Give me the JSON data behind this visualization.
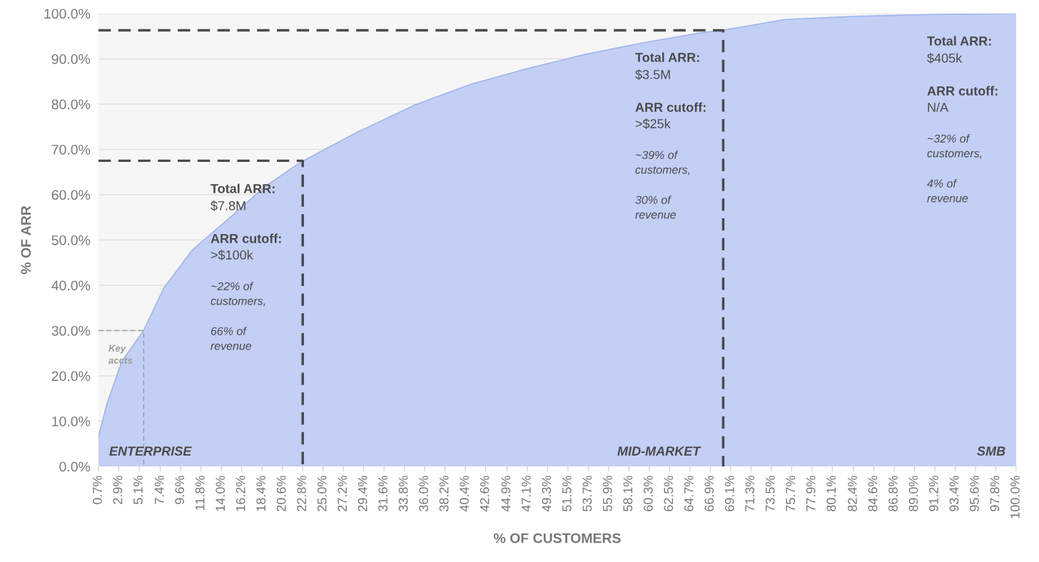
{
  "chart_data": {
    "type": "area",
    "xlabel": "% OF CUSTOMERS",
    "ylabel": "% OF ARR",
    "xlim": [
      0.7,
      100.0
    ],
    "xticks": [
      {
        "value": 0.7,
        "label": "0.7%"
      },
      {
        "value": 2.9,
        "label": "2.9%"
      },
      {
        "value": 5.1,
        "label": "5.1%"
      },
      {
        "value": 7.4,
        "label": "7.4%"
      },
      {
        "value": 9.6,
        "label": "9.6%"
      },
      {
        "value": 11.8,
        "label": "11.8%"
      },
      {
        "value": 14.0,
        "label": "14.0%"
      },
      {
        "value": 16.2,
        "label": "16.2%"
      },
      {
        "value": 18.4,
        "label": "18.4%"
      },
      {
        "value": 20.6,
        "label": "20.6%"
      },
      {
        "value": 22.8,
        "label": "22.8%"
      },
      {
        "value": 25.0,
        "label": "25.0%"
      },
      {
        "value": 27.2,
        "label": "27.2%"
      },
      {
        "value": 29.4,
        "label": "29.4%"
      },
      {
        "value": 31.6,
        "label": "31.6%"
      },
      {
        "value": 33.8,
        "label": "33.8%"
      },
      {
        "value": 36.0,
        "label": "36.0%"
      },
      {
        "value": 38.2,
        "label": "38.2%"
      },
      {
        "value": 40.4,
        "label": "40.4%"
      },
      {
        "value": 42.6,
        "label": "42.6%"
      },
      {
        "value": 44.9,
        "label": "44.9%"
      },
      {
        "value": 47.1,
        "label": "47.1%"
      },
      {
        "value": 49.3,
        "label": "49.3%"
      },
      {
        "value": 51.5,
        "label": "51.5%"
      },
      {
        "value": 53.7,
        "label": "53.7%"
      },
      {
        "value": 55.9,
        "label": "55.9%"
      },
      {
        "value": 58.1,
        "label": "58.1%"
      },
      {
        "value": 60.3,
        "label": "60.3%"
      },
      {
        "value": 62.5,
        "label": "62.5%"
      },
      {
        "value": 64.7,
        "label": "64.7%"
      },
      {
        "value": 66.9,
        "label": "66.9%"
      },
      {
        "value": 69.1,
        "label": "69.1%"
      },
      {
        "value": 71.3,
        "label": "71.3%"
      },
      {
        "value": 73.5,
        "label": "73.5%"
      },
      {
        "value": 75.7,
        "label": "75.7%"
      },
      {
        "value": 77.9,
        "label": "77.9%"
      },
      {
        "value": 80.1,
        "label": "80.1%"
      },
      {
        "value": 82.4,
        "label": "82.4%"
      },
      {
        "value": 84.6,
        "label": "84.6%"
      },
      {
        "value": 86.8,
        "label": "86.8%"
      },
      {
        "value": 89.0,
        "label": "89.0%"
      },
      {
        "value": 91.2,
        "label": "91.2%"
      },
      {
        "value": 93.4,
        "label": "93.4%"
      },
      {
        "value": 95.6,
        "label": "95.6%"
      },
      {
        "value": 97.8,
        "label": "97.8%"
      },
      {
        "value": 100.0,
        "label": "100.0%"
      }
    ],
    "ylim": [
      0,
      100
    ],
    "yticks": [
      {
        "value": 0,
        "label": "0.0%"
      },
      {
        "value": 10,
        "label": "10.0%"
      },
      {
        "value": 20,
        "label": "20.0%"
      },
      {
        "value": 30,
        "label": "30.0%"
      },
      {
        "value": 40,
        "label": "40.0%"
      },
      {
        "value": 50,
        "label": "50.0%"
      },
      {
        "value": 60,
        "label": "60.0%"
      },
      {
        "value": 70,
        "label": "70.0%"
      },
      {
        "value": 80,
        "label": "80.0%"
      },
      {
        "value": 90,
        "label": "90.0%"
      },
      {
        "value": 100,
        "label": "100.0%"
      }
    ],
    "grid": "y",
    "series": [
      {
        "color": "#c3cff5",
        "x": [
          0.7,
          1.6,
          3.2,
          5.6,
          7.8,
          10.9,
          14.5,
          18.6,
          22.5,
          28.6,
          34.8,
          41.0,
          47.2,
          53.4,
          59.5,
          65.7,
          68.5,
          75.0,
          82.7,
          91.4,
          100.0
        ],
        "values": [
          6.5,
          13.7,
          23.1,
          30.1,
          39.5,
          47.9,
          54.2,
          61.6,
          67.1,
          73.7,
          79.7,
          84.4,
          87.9,
          91.0,
          93.5,
          95.7,
          96.4,
          98.7,
          99.4,
          99.8,
          100.0
        ]
      },
      {
        "type": "line",
        "line_style": "dashed",
        "color": "#4a4a4a",
        "x": [
          0.7,
          22.8,
          22.8
        ],
        "values": [
          67.5,
          67.5,
          0
        ]
      },
      {
        "type": "line",
        "line_style": "dashed",
        "color": "#4a4a4a",
        "x": [
          0.7,
          68.3,
          68.3
        ],
        "values": [
          96.3,
          96.3,
          0
        ]
      },
      {
        "type": "line",
        "line_style": "dashed",
        "color": "#9a9a9a",
        "x": [
          0.7,
          5.6,
          5.6
        ],
        "values": [
          30,
          30,
          0
        ]
      }
    ],
    "annotations": [
      "Total ARR:",
      "$7.8M",
      "ARR cutoff:",
      ">$100k",
      "~22% of\ncustomers,",
      "66% of\nrevenue",
      "Total ARR:",
      "$3.5M",
      "ARR cutoff:",
      ">$25k",
      "~39% of\ncustomers,",
      "30% of\nrevenue",
      "Total ARR:",
      "$405k",
      "ARR cutoff:",
      "N/A",
      "~32% of\ncustomers,",
      "4% of\nrevenue",
      "Key\naccts",
      "ENTERPRISE",
      "MID-MARKET",
      "SMB"
    ]
  }
}
